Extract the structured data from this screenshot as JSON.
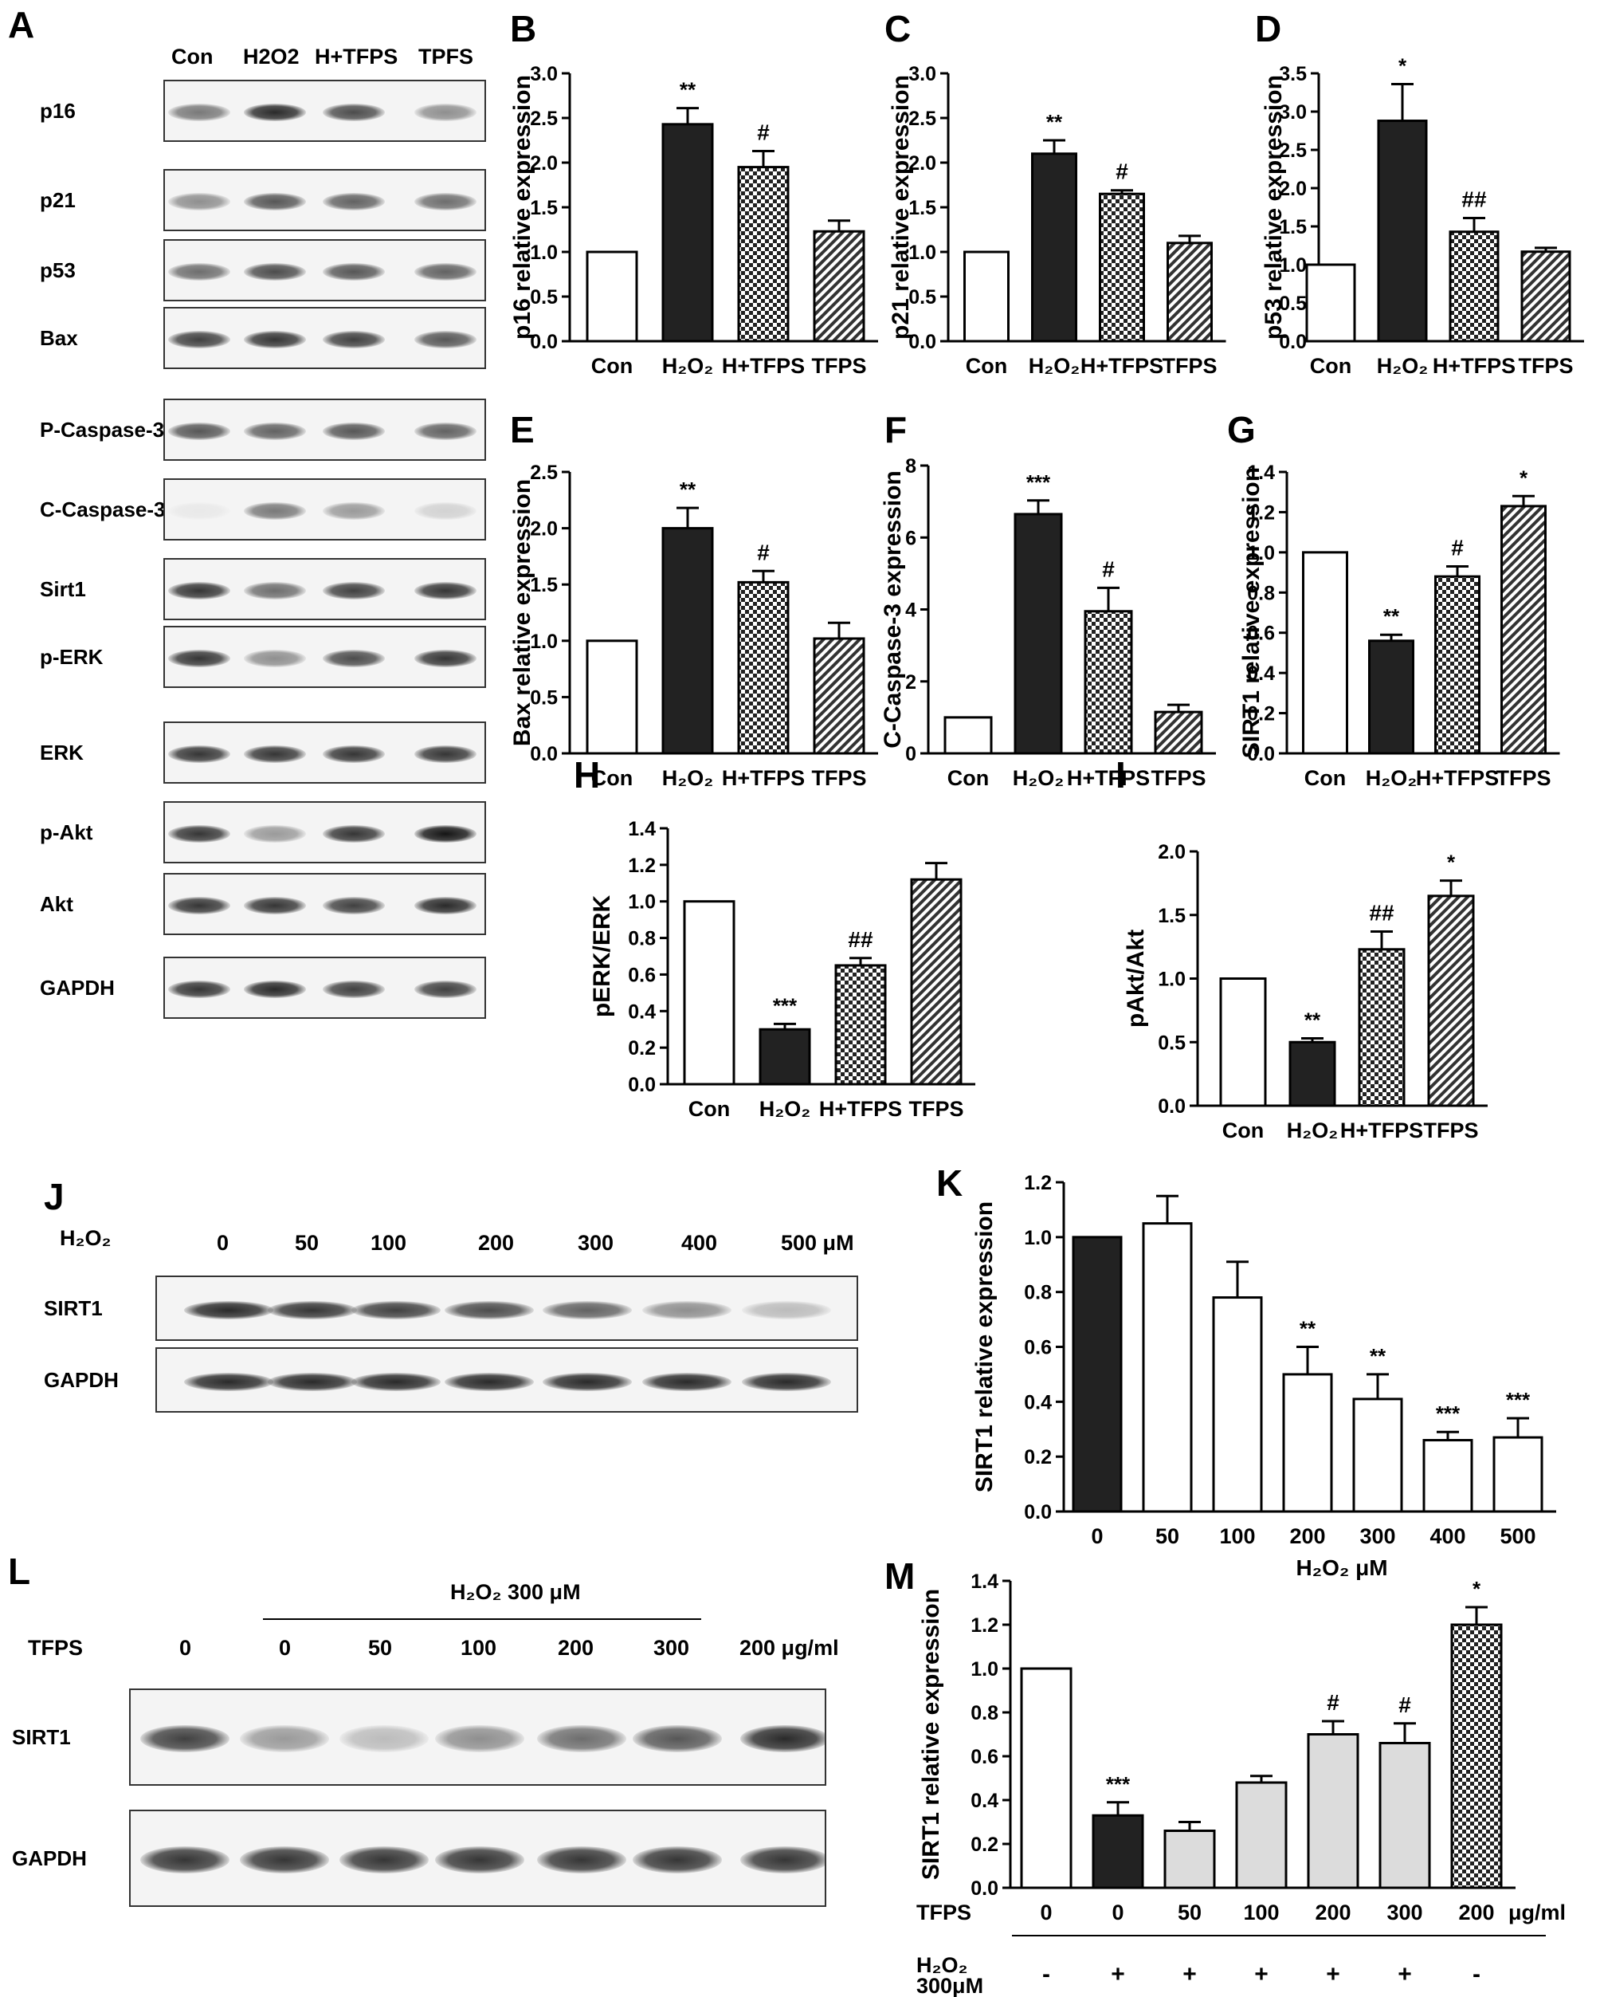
{
  "colors": {
    "bar_black": "#222222",
    "bar_white": "#ffffff",
    "bar_grey": "#dcdcdc",
    "band": "#1b1b1b"
  },
  "panel_A": {
    "letter": "A",
    "lanes": [
      "Con",
      "H2O2",
      "H+TFPS",
      "TPFS"
    ],
    "rows": [
      "p16",
      "p21",
      "p53",
      "Bax",
      "P-Caspase-3",
      "C-Caspase-3",
      "Sirt1",
      "p-ERK",
      "ERK",
      "p-Akt",
      "Akt",
      "GAPDH"
    ],
    "intensities": [
      [
        0.55,
        0.9,
        0.75,
        0.45
      ],
      [
        0.45,
        0.7,
        0.65,
        0.6
      ],
      [
        0.6,
        0.75,
        0.7,
        0.65
      ],
      [
        0.8,
        0.85,
        0.8,
        0.7
      ],
      [
        0.7,
        0.65,
        0.7,
        0.65
      ],
      [
        0.05,
        0.55,
        0.4,
        0.15
      ],
      [
        0.85,
        0.6,
        0.8,
        0.85
      ],
      [
        0.85,
        0.45,
        0.75,
        0.85
      ],
      [
        0.85,
        0.85,
        0.85,
        0.85
      ],
      [
        0.85,
        0.4,
        0.85,
        1.0
      ],
      [
        0.85,
        0.85,
        0.8,
        0.9
      ],
      [
        0.85,
        0.9,
        0.8,
        0.8
      ]
    ]
  },
  "panel_J": {
    "letter": "J",
    "h2o2_label": "H₂O₂",
    "lanes": [
      "0",
      "50",
      "100",
      "200",
      "300",
      "400",
      "500 μM"
    ],
    "rows": [
      "SIRT1",
      "GAPDH"
    ],
    "intensities": [
      [
        0.9,
        0.85,
        0.8,
        0.75,
        0.65,
        0.45,
        0.25
      ],
      [
        0.9,
        0.9,
        0.9,
        0.9,
        0.9,
        0.9,
        0.9
      ]
    ]
  },
  "panel_L": {
    "letter": "L",
    "h2o2_header": "H₂O₂ 300 μM",
    "tfps_label": "TFPS",
    "lanes": [
      "0",
      "0",
      "50",
      "100",
      "200",
      "300",
      "200 μg/ml"
    ],
    "rows": [
      "SIRT1",
      "GAPDH"
    ],
    "intensities": [
      [
        0.8,
        0.4,
        0.25,
        0.45,
        0.6,
        0.7,
        0.9
      ],
      [
        0.85,
        0.85,
        0.85,
        0.85,
        0.85,
        0.85,
        0.85
      ]
    ]
  },
  "chart_data": [
    {
      "id": "B",
      "type": "bar",
      "ylabel": "p16 relative expression",
      "categories": [
        "Con",
        "H₂O₂",
        "H+TFPS",
        "TFPS"
      ],
      "values": [
        1.0,
        2.43,
        1.95,
        1.23
      ],
      "errors": [
        0,
        0.18,
        0.18,
        0.12
      ],
      "ylim": [
        0,
        3.0
      ],
      "ticks": [
        0,
        0.5,
        1.0,
        1.5,
        2.0,
        2.5,
        3.0
      ],
      "annotations": [
        "",
        "**",
        "#",
        ""
      ],
      "fills": [
        "white",
        "black",
        "check",
        "diag"
      ]
    },
    {
      "id": "C",
      "type": "bar",
      "ylabel": "p21 relative expression",
      "categories": [
        "Con",
        "H₂O₂",
        "H+TFPS",
        "TFPS"
      ],
      "values": [
        1.0,
        2.1,
        1.65,
        1.1
      ],
      "errors": [
        0,
        0.15,
        0.04,
        0.08
      ],
      "ylim": [
        0,
        3.0
      ],
      "ticks": [
        0,
        0.5,
        1.0,
        1.5,
        2.0,
        2.5,
        3.0
      ],
      "annotations": [
        "",
        "**",
        "#",
        ""
      ],
      "fills": [
        "white",
        "black",
        "check",
        "diag"
      ]
    },
    {
      "id": "D",
      "type": "bar",
      "ylabel": "p53 relative expression",
      "categories": [
        "Con",
        "H₂O₂",
        "H+TFPS",
        "TFPS"
      ],
      "values": [
        1.0,
        2.88,
        1.43,
        1.17
      ],
      "errors": [
        0,
        0.48,
        0.18,
        0.05
      ],
      "ylim": [
        0,
        3.5
      ],
      "ticks": [
        0,
        0.5,
        1.0,
        1.5,
        2.0,
        2.5,
        3.0,
        3.5
      ],
      "annotations": [
        "",
        "*",
        "##",
        ""
      ],
      "fills": [
        "white",
        "black",
        "check",
        "diag"
      ]
    },
    {
      "id": "E",
      "type": "bar",
      "ylabel": "Bax relative expression",
      "categories": [
        "Con",
        "H₂O₂",
        "H+TFPS",
        "TFPS"
      ],
      "values": [
        1.0,
        2.0,
        1.52,
        1.02
      ],
      "errors": [
        0,
        0.18,
        0.1,
        0.14
      ],
      "ylim": [
        0,
        2.5
      ],
      "ticks": [
        0,
        0.5,
        1.0,
        1.5,
        2.0,
        2.5
      ],
      "annotations": [
        "",
        "**",
        "#",
        ""
      ],
      "fills": [
        "white",
        "black",
        "check",
        "diag"
      ]
    },
    {
      "id": "F",
      "type": "bar",
      "ylabel": "C-Caspase-3 expression",
      "categories": [
        "Con",
        "H₂O₂",
        "H+TFPS",
        "TFPS"
      ],
      "values": [
        1.0,
        6.65,
        3.95,
        1.15
      ],
      "errors": [
        0,
        0.38,
        0.65,
        0.2
      ],
      "ylim": [
        0,
        8
      ],
      "ticks": [
        0,
        2,
        4,
        6,
        8
      ],
      "annotations": [
        "",
        "***",
        "#",
        ""
      ],
      "fills": [
        "white",
        "black",
        "check",
        "diag"
      ]
    },
    {
      "id": "G",
      "type": "bar",
      "ylabel": "SIRT1 relative expression",
      "categories": [
        "Con",
        "H₂O₂",
        "H+TFPS",
        "TFPS"
      ],
      "values": [
        1.0,
        0.56,
        0.88,
        1.23
      ],
      "errors": [
        0,
        0.03,
        0.05,
        0.05
      ],
      "ylim": [
        0,
        1.4
      ],
      "ticks": [
        0,
        0.2,
        0.4,
        0.6,
        0.8,
        1.0,
        1.2,
        1.4
      ],
      "annotations": [
        "",
        "**",
        "#",
        "*"
      ],
      "fills": [
        "white",
        "black",
        "check",
        "diag"
      ]
    },
    {
      "id": "H",
      "type": "bar",
      "ylabel": "pERK/ERK",
      "categories": [
        "Con",
        "H₂O₂",
        "H+TFPS",
        "TFPS"
      ],
      "values": [
        1.0,
        0.3,
        0.65,
        1.12
      ],
      "errors": [
        0,
        0.03,
        0.04,
        0.09
      ],
      "ylim": [
        0,
        1.4
      ],
      "ticks": [
        0,
        0.2,
        0.4,
        0.6,
        0.8,
        1.0,
        1.2,
        1.4
      ],
      "annotations": [
        "",
        "***",
        "##",
        ""
      ],
      "fills": [
        "white",
        "black",
        "check",
        "diag"
      ]
    },
    {
      "id": "I",
      "type": "bar",
      "ylabel": "pAkt/Akt",
      "categories": [
        "Con",
        "H₂O₂",
        "H+TFPS",
        "TFPS"
      ],
      "values": [
        1.0,
        0.5,
        1.23,
        1.65
      ],
      "errors": [
        0,
        0.03,
        0.14,
        0.12
      ],
      "ylim": [
        0,
        2.0
      ],
      "ticks": [
        0,
        0.5,
        1.0,
        1.5,
        2.0
      ],
      "annotations": [
        "",
        "**",
        "##",
        "*"
      ],
      "fills": [
        "white",
        "black",
        "check",
        "diag"
      ]
    },
    {
      "id": "K",
      "type": "bar",
      "ylabel": "SIRT1 relative expression",
      "xlabel": "H₂O₂ μM",
      "categories": [
        "0",
        "50",
        "100",
        "200",
        "300",
        "400",
        "500"
      ],
      "values": [
        1.0,
        1.05,
        0.78,
        0.5,
        0.41,
        0.26,
        0.27
      ],
      "errors": [
        0,
        0.1,
        0.13,
        0.1,
        0.09,
        0.03,
        0.07
      ],
      "ylim": [
        0,
        1.2
      ],
      "ticks": [
        0,
        0.2,
        0.4,
        0.6,
        0.8,
        1.0,
        1.2
      ],
      "annotations": [
        "",
        "",
        "",
        "**",
        "**",
        "***",
        "***"
      ],
      "fills": [
        "black",
        "white",
        "white",
        "white",
        "white",
        "white",
        "white"
      ]
    },
    {
      "id": "M",
      "type": "bar",
      "ylabel": "SIRT1 relative expression",
      "row_label_tfps": "TFPS",
      "row_label_h2o2": "H₂O₂",
      "row_label_h2o2_conc": "300μM",
      "categories": [
        "0",
        "0",
        "50",
        "100",
        "200",
        "300",
        "200"
      ],
      "unit": "μg/ml",
      "h2o2_row": [
        "-",
        "+",
        "+",
        "+",
        "+",
        "+",
        "-"
      ],
      "values": [
        1.0,
        0.33,
        0.26,
        0.48,
        0.7,
        0.66,
        1.2
      ],
      "errors": [
        0,
        0.06,
        0.04,
        0.03,
        0.06,
        0.09,
        0.08
      ],
      "ylim": [
        0,
        1.4
      ],
      "ticks": [
        0,
        0.2,
        0.4,
        0.6,
        0.8,
        1.0,
        1.2,
        1.4
      ],
      "annotations": [
        "",
        "***",
        "",
        "",
        "#",
        "#",
        "*"
      ],
      "fills": [
        "white",
        "black",
        "grey",
        "grey",
        "grey",
        "grey",
        "check"
      ]
    }
  ]
}
